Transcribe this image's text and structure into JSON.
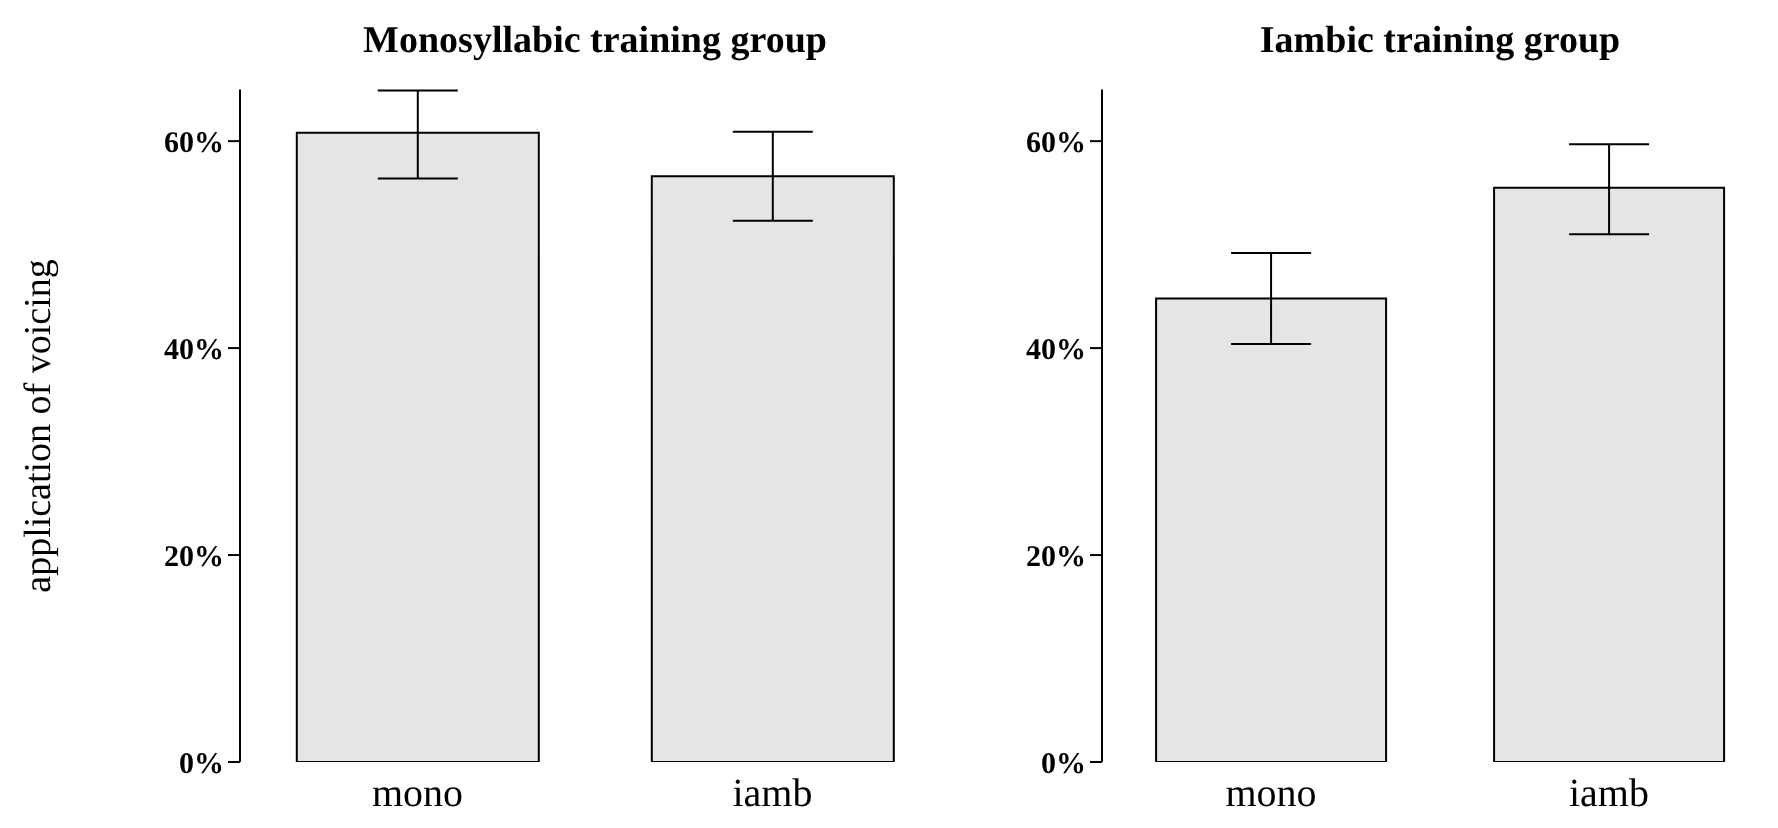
{
  "chart_data": [
    {
      "type": "bar",
      "title": "Monosyllabic training group",
      "ylabel": "application of voicing",
      "categories": [
        "mono",
        "iamb"
      ],
      "values": [
        60.8,
        56.6
      ],
      "errors": [
        [
          56.4,
          64.9
        ],
        [
          52.3,
          60.9
        ]
      ],
      "color": "#e5e5e5",
      "ylim": [
        0,
        65
      ],
      "yticks": [
        {
          "value": 0,
          "label": "0%"
        },
        {
          "value": 20,
          "label": "20%"
        },
        {
          "value": 40,
          "label": "40%"
        },
        {
          "value": 60,
          "label": "60%"
        }
      ]
    },
    {
      "type": "bar",
      "title": "Iambic training group",
      "categories": [
        "mono",
        "iamb"
      ],
      "values": [
        44.8,
        55.5
      ],
      "errors": [
        [
          40.4,
          49.2
        ],
        [
          51.0,
          59.7
        ]
      ],
      "color": "#e5e5e5",
      "ylim": [
        0,
        65
      ],
      "yticks": [
        {
          "value": 0,
          "label": "0%"
        },
        {
          "value": 20,
          "label": "20%"
        },
        {
          "value": 40,
          "label": "40%"
        },
        {
          "value": 60,
          "label": "60%"
        }
      ]
    }
  ]
}
